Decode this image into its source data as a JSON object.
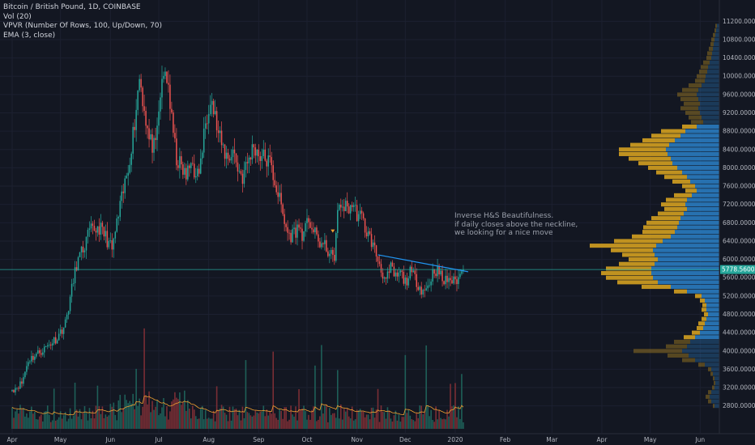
{
  "legend": {
    "symbol": "Bitcoin / British Pound, 1D, COINBASE",
    "volume": "Vol (20)",
    "vpvr": "VPVR (Number Of Rows, 100, Up/Down, 70)",
    "ema": "EMA (3, close)"
  },
  "annotation": {
    "line1": "Inverse H&S Beautifulness.",
    "line2": "if daily closes above the neckline,",
    "line3": "we looking for a nice move"
  },
  "price_label": "5778.560000",
  "colors": {
    "background": "#131722",
    "up": "#26a69a",
    "down": "#ef5350",
    "vol_up": "#1e5f58",
    "vol_down": "#7a2e35",
    "ema": "#f0a030",
    "neckline": "#2196f3",
    "price_line": "#26a69a",
    "vpvr_up": "#2a7bc0",
    "vpvr_down": "#d4a020"
  },
  "chart_data": {
    "type": "candlestick",
    "y_axis": {
      "min": 2600,
      "max": 11400,
      "ticks": [
        11200,
        10800,
        10400,
        10000,
        9600,
        9200,
        8800,
        8400,
        8000,
        7600,
        7200,
        6800,
        6400,
        6000,
        5600,
        5200,
        4800,
        4400,
        4000,
        3600,
        3200,
        2800
      ],
      "tick_labels": [
        "11200.000000",
        "10800.000000",
        "10400.000000",
        "10000.000000",
        "9600.000000",
        "9200.000000",
        "8800.000000",
        "8400.000000",
        "8000.000000",
        "7600.000000",
        "7200.000000",
        "6800.000000",
        "6400.000000",
        "6000.000000",
        "5600.000000",
        "5200.000000",
        "4800.000000",
        "4400.000000",
        "4000.000000",
        "3600.000000",
        "3200.000000",
        "2800.000000"
      ]
    },
    "x_axis": {
      "labels": [
        "Apr",
        "May",
        "Jun",
        "Jul",
        "Aug",
        "Sep",
        "Oct",
        "Nov",
        "Dec",
        "2020",
        "Feb",
        "Mar",
        "Apr",
        "May",
        "Jun"
      ],
      "label_days": [
        0,
        30,
        61,
        91,
        122,
        153,
        183,
        214,
        244,
        275,
        306,
        335,
        366,
        396,
        427
      ]
    },
    "current_price": 5778.56,
    "close_anchors": [
      [
        0,
        3150
      ],
      [
        6,
        3300
      ],
      [
        10,
        3800
      ],
      [
        20,
        4050
      ],
      [
        28,
        4300
      ],
      [
        33,
        4600
      ],
      [
        40,
        5900
      ],
      [
        45,
        6300
      ],
      [
        48,
        6600
      ],
      [
        54,
        6700
      ],
      [
        58,
        6500
      ],
      [
        62,
        6200
      ],
      [
        64,
        6600
      ],
      [
        68,
        7300
      ],
      [
        72,
        8000
      ],
      [
        76,
        9000
      ],
      [
        79,
        10000
      ],
      [
        82,
        9300
      ],
      [
        85,
        8600
      ],
      [
        89,
        8400
      ],
      [
        92,
        9600
      ],
      [
        95,
        10100
      ],
      [
        97,
        9800
      ],
      [
        99,
        9000
      ],
      [
        102,
        8200
      ],
      [
        105,
        8000
      ],
      [
        108,
        7800
      ],
      [
        112,
        8200
      ],
      [
        114,
        7700
      ],
      [
        117,
        8100
      ],
      [
        120,
        9000
      ],
      [
        123,
        9600
      ],
      [
        126,
        9100
      ],
      [
        128,
        8700
      ],
      [
        131,
        8400
      ],
      [
        134,
        8200
      ],
      [
        137,
        8400
      ],
      [
        140,
        8000
      ],
      [
        143,
        7800
      ],
      [
        146,
        8100
      ],
      [
        150,
        8500
      ],
      [
        153,
        8300
      ],
      [
        157,
        8200
      ],
      [
        160,
        8100
      ],
      [
        163,
        7700
      ],
      [
        166,
        7300
      ],
      [
        169,
        6800
      ],
      [
        172,
        6500
      ],
      [
        175,
        6600
      ],
      [
        178,
        6700
      ],
      [
        181,
        6500
      ],
      [
        184,
        6900
      ],
      [
        187,
        6600
      ],
      [
        190,
        6400
      ],
      [
        193,
        6300
      ],
      [
        196,
        6200
      ],
      [
        199,
        6000
      ],
      [
        200,
        6100
      ],
      [
        202,
        7000
      ],
      [
        205,
        7200
      ],
      [
        208,
        7100
      ],
      [
        211,
        7200
      ],
      [
        214,
        7000
      ],
      [
        217,
        6900
      ],
      [
        220,
        6600
      ],
      [
        223,
        6400
      ],
      [
        226,
        6100
      ],
      [
        229,
        5800
      ],
      [
        232,
        5500
      ],
      [
        235,
        5800
      ],
      [
        238,
        5600
      ],
      [
        241,
        5700
      ],
      [
        244,
        5500
      ],
      [
        247,
        5700
      ],
      [
        250,
        5600
      ],
      [
        253,
        5400
      ],
      [
        256,
        5300
      ],
      [
        259,
        5500
      ],
      [
        262,
        5800
      ],
      [
        265,
        5700
      ],
      [
        268,
        5500
      ],
      [
        271,
        5600
      ],
      [
        274,
        5500
      ],
      [
        277,
        5600
      ],
      [
        279,
        5700
      ],
      [
        280,
        5778.56
      ]
    ],
    "neckline": {
      "start": {
        "day": 227,
        "price": 6100
      },
      "end": {
        "day": 283,
        "price": 5730
      }
    },
    "vpvr": {
      "rows": [
        {
          "price": 11100,
          "up": 3,
          "down": 2
        },
        {
          "price": 11000,
          "up": 4,
          "down": 2
        },
        {
          "price": 10900,
          "up": 5,
          "down": 3
        },
        {
          "price": 10800,
          "up": 6,
          "down": 4
        },
        {
          "price": 10700,
          "up": 7,
          "down": 4
        },
        {
          "price": 10600,
          "up": 8,
          "down": 5
        },
        {
          "price": 10500,
          "up": 9,
          "down": 6
        },
        {
          "price": 10400,
          "up": 10,
          "down": 6
        },
        {
          "price": 10300,
          "up": 12,
          "down": 8
        },
        {
          "price": 10200,
          "up": 14,
          "down": 9
        },
        {
          "price": 10100,
          "up": 15,
          "down": 10
        },
        {
          "price": 10000,
          "up": 17,
          "down": 11
        },
        {
          "price": 9900,
          "up": 18,
          "down": 12
        },
        {
          "price": 9800,
          "up": 22,
          "down": 16
        },
        {
          "price": 9700,
          "up": 26,
          "down": 20
        },
        {
          "price": 9600,
          "up": 28,
          "down": 24
        },
        {
          "price": 9500,
          "up": 26,
          "down": 22
        },
        {
          "price": 9400,
          "up": 24,
          "down": 20
        },
        {
          "price": 9300,
          "up": 26,
          "down": 22
        },
        {
          "price": 9200,
          "up": 24,
          "down": 18
        },
        {
          "price": 9100,
          "up": 22,
          "down": 16
        },
        {
          "price": 9000,
          "up": 20,
          "down": 15
        },
        {
          "price": 8900,
          "up": 28,
          "down": 18
        },
        {
          "price": 8800,
          "up": 42,
          "down": 30
        },
        {
          "price": 8700,
          "up": 48,
          "down": 36
        },
        {
          "price": 8600,
          "up": 55,
          "down": 40
        },
        {
          "price": 8500,
          "up": 62,
          "down": 48
        },
        {
          "price": 8400,
          "up": 66,
          "down": 58
        },
        {
          "price": 8300,
          "up": 64,
          "down": 60
        },
        {
          "price": 8200,
          "up": 60,
          "down": 52
        },
        {
          "price": 8100,
          "up": 58,
          "down": 42
        },
        {
          "price": 8000,
          "up": 52,
          "down": 36
        },
        {
          "price": 7900,
          "up": 46,
          "down": 32
        },
        {
          "price": 7800,
          "up": 40,
          "down": 28
        },
        {
          "price": 7700,
          "up": 36,
          "down": 22
        },
        {
          "price": 7600,
          "up": 30,
          "down": 16
        },
        {
          "price": 7500,
          "up": 28,
          "down": 14
        },
        {
          "price": 7400,
          "up": 34,
          "down": 22
        },
        {
          "price": 7300,
          "up": 40,
          "down": 26
        },
        {
          "price": 7200,
          "up": 42,
          "down": 30
        },
        {
          "price": 7100,
          "up": 40,
          "down": 28
        },
        {
          "price": 7000,
          "up": 44,
          "down": 32
        },
        {
          "price": 6900,
          "up": 48,
          "down": 36
        },
        {
          "price": 6800,
          "up": 50,
          "down": 40
        },
        {
          "price": 6700,
          "up": 52,
          "down": 42
        },
        {
          "price": 6600,
          "up": 55,
          "down": 40
        },
        {
          "price": 6500,
          "up": 60,
          "down": 48
        },
        {
          "price": 6400,
          "up": 70,
          "down": 60
        },
        {
          "price": 6300,
          "up": 78,
          "down": 82
        },
        {
          "price": 6200,
          "up": 82,
          "down": 52
        },
        {
          "price": 6100,
          "up": 80,
          "down": 40
        },
        {
          "price": 6000,
          "up": 76,
          "down": 36
        },
        {
          "price": 5900,
          "up": 80,
          "down": 44
        },
        {
          "price": 5800,
          "up": 84,
          "down": 56
        },
        {
          "price": 5700,
          "up": 84,
          "down": 62
        },
        {
          "price": 5600,
          "up": 82,
          "down": 58
        },
        {
          "price": 5500,
          "up": 76,
          "down": 50
        },
        {
          "price": 5400,
          "up": 60,
          "down": 36
        },
        {
          "price": 5300,
          "up": 40,
          "down": 16
        },
        {
          "price": 5200,
          "up": 22,
          "down": 8
        },
        {
          "price": 5100,
          "up": 18,
          "down": 6
        },
        {
          "price": 5000,
          "up": 16,
          "down": 5
        },
        {
          "price": 4900,
          "up": 16,
          "down": 6
        },
        {
          "price": 4800,
          "up": 14,
          "down": 5
        },
        {
          "price": 4700,
          "up": 16,
          "down": 6
        },
        {
          "price": 4600,
          "up": 18,
          "down": 8
        },
        {
          "price": 4500,
          "up": 20,
          "down": 8
        },
        {
          "price": 4400,
          "up": 24,
          "down": 10
        },
        {
          "price": 4300,
          "up": 30,
          "down": 14
        },
        {
          "price": 4200,
          "up": 36,
          "down": 20
        },
        {
          "price": 4100,
          "up": 40,
          "down": 26
        },
        {
          "price": 4000,
          "up": 46,
          "down": 60
        },
        {
          "price": 3900,
          "up": 38,
          "down": 26
        },
        {
          "price": 3800,
          "up": 30,
          "down": 16
        },
        {
          "price": 3700,
          "up": 18,
          "down": 8
        },
        {
          "price": 3600,
          "up": 10,
          "down": 4
        },
        {
          "price": 3500,
          "up": 8,
          "down": 3
        },
        {
          "price": 3400,
          "up": 6,
          "down": 2
        },
        {
          "price": 3300,
          "up": 5,
          "down": 2
        },
        {
          "price": 3200,
          "up": 6,
          "down": 3
        },
        {
          "price": 3100,
          "up": 10,
          "down": 4
        },
        {
          "price": 3000,
          "up": 12,
          "down": 5
        },
        {
          "price": 2900,
          "up": 10,
          "down": 4
        },
        {
          "price": 2800,
          "up": 6,
          "down": 2
        }
      ]
    }
  }
}
